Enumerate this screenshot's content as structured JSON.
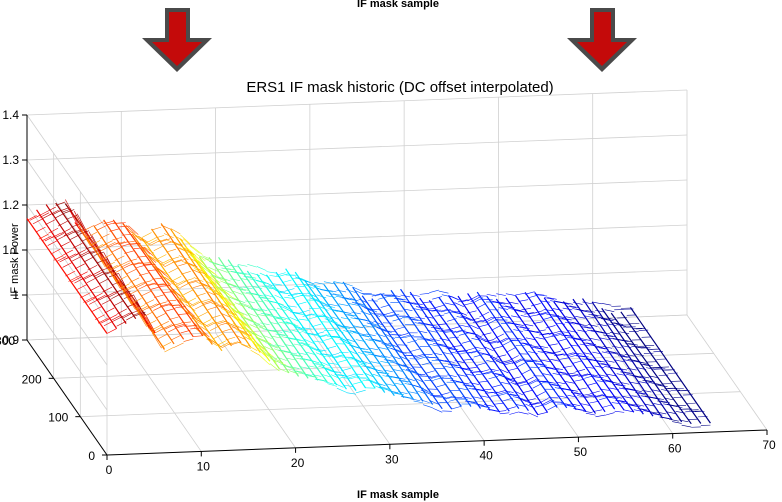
{
  "figure": {
    "top_caption": "IF mask sample",
    "bottom_caption": "IF mask sample"
  },
  "arrows": [
    {
      "name": "left-down-arrow-icon",
      "color": "#c00000",
      "outline": "#555555"
    },
    {
      "name": "right-down-arrow-icon",
      "color": "#c00000",
      "outline": "#555555"
    }
  ],
  "chart_data": {
    "type": "surface",
    "title": "ERS1 IF mask historic (DC offset interpolated)",
    "xlabel": "",
    "ylabel": "",
    "zlabel": "IF mask Power",
    "x_ticks": [
      "0",
      "10",
      "20",
      "30",
      "40",
      "50",
      "60",
      "70"
    ],
    "y_ticks": [
      "0",
      "100",
      "200",
      "300"
    ],
    "z_ticks": [
      "0.9",
      "1",
      "1.1",
      "1.2",
      "1.3",
      "1.4"
    ],
    "xlim": [
      0,
      70
    ],
    "ylim": [
      0,
      300
    ],
    "zlim": [
      0.9,
      1.4
    ],
    "grid": true,
    "colormap": "jet",
    "sample_count": 64,
    "profile": [
      {
        "x": 0,
        "z": 1.17
      },
      {
        "x": 2,
        "z": 1.19
      },
      {
        "x": 4,
        "z": 1.21
      },
      {
        "x": 6,
        "z": 1.13
      },
      {
        "x": 8,
        "z": 1.15
      },
      {
        "x": 10,
        "z": 1.16
      },
      {
        "x": 12,
        "z": 1.12
      },
      {
        "x": 14,
        "z": 1.14
      },
      {
        "x": 16,
        "z": 1.12
      },
      {
        "x": 18,
        "z": 1.08
      },
      {
        "x": 20,
        "z": 1.06
      },
      {
        "x": 22,
        "z": 1.05
      },
      {
        "x": 24,
        "z": 1.04
      },
      {
        "x": 26,
        "z": 1.02
      },
      {
        "x": 28,
        "z": 1.03
      },
      {
        "x": 30,
        "z": 1.01
      },
      {
        "x": 32,
        "z": 1.0
      },
      {
        "x": 34,
        "z": 0.99
      },
      {
        "x": 36,
        "z": 0.97
      },
      {
        "x": 38,
        "z": 0.98
      },
      {
        "x": 40,
        "z": 0.97
      },
      {
        "x": 42,
        "z": 0.96
      },
      {
        "x": 44,
        "z": 0.97
      },
      {
        "x": 46,
        "z": 0.95
      },
      {
        "x": 48,
        "z": 0.97
      },
      {
        "x": 50,
        "z": 0.96
      },
      {
        "x": 52,
        "z": 0.95
      },
      {
        "x": 54,
        "z": 0.96
      },
      {
        "x": 56,
        "z": 0.95
      },
      {
        "x": 58,
        "z": 0.94
      },
      {
        "x": 60,
        "z": 0.93
      },
      {
        "x": 62,
        "z": 0.92
      },
      {
        "x": 64,
        "z": 0.92
      }
    ]
  }
}
